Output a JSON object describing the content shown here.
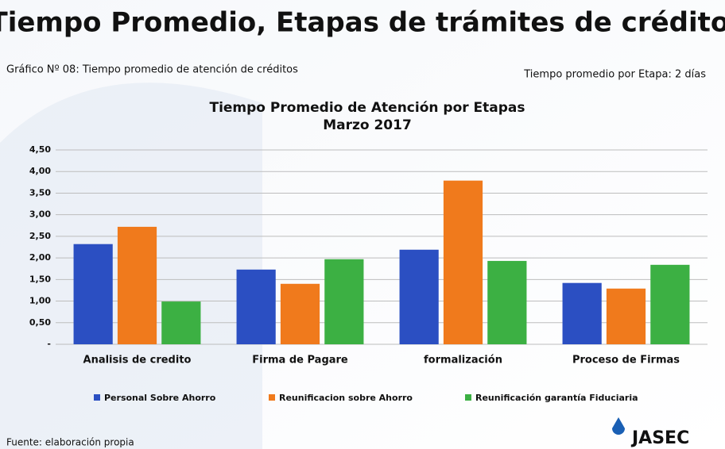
{
  "header": {
    "title": "Tiempo Promedio, Etapas de trámites de créditos",
    "caption": "Gráfico Nº 08: Tiempo promedio de atención de créditos",
    "note": "Tiempo promedio  por Etapa: 2 días"
  },
  "chart_data": {
    "type": "bar",
    "title": "Tiempo Promedio de Atención por Etapas",
    "subtitle": "Marzo 2017",
    "categories": [
      "Analisis de credito",
      "Firma de Pagare",
      "formalización",
      "Proceso de Firmas"
    ],
    "series": [
      {
        "name": "Personal Sobre Ahorro",
        "color": "#2b4fc2",
        "values": [
          2.32,
          1.73,
          2.19,
          1.42
        ]
      },
      {
        "name": "Reunificacion sobre Ahorro",
        "color": "#f07a1c",
        "values": [
          2.72,
          1.4,
          3.79,
          1.29
        ]
      },
      {
        "name": "Reunificación garantía Fiduciaria",
        "color": "#3cb043",
        "values": [
          0.99,
          1.97,
          1.93,
          1.84
        ]
      }
    ],
    "ylim": [
      0,
      4.5
    ],
    "yticks": [
      {
        "value": 0,
        "label": "-"
      },
      {
        "value": 0.5,
        "label": "0,50"
      },
      {
        "value": 1,
        "label": "1,00"
      },
      {
        "value": 1.5,
        "label": "1,50"
      },
      {
        "value": 2,
        "label": "2,00"
      },
      {
        "value": 2.5,
        "label": "2,50"
      },
      {
        "value": 3,
        "label": "3,00"
      },
      {
        "value": 3.5,
        "label": "3,50"
      },
      {
        "value": 4,
        "label": "4,00"
      },
      {
        "value": 4.5,
        "label": "4,50"
      }
    ],
    "grid": true
  },
  "footer": {
    "source": "Fuente: elaboración propia",
    "logo": "JASEC"
  }
}
